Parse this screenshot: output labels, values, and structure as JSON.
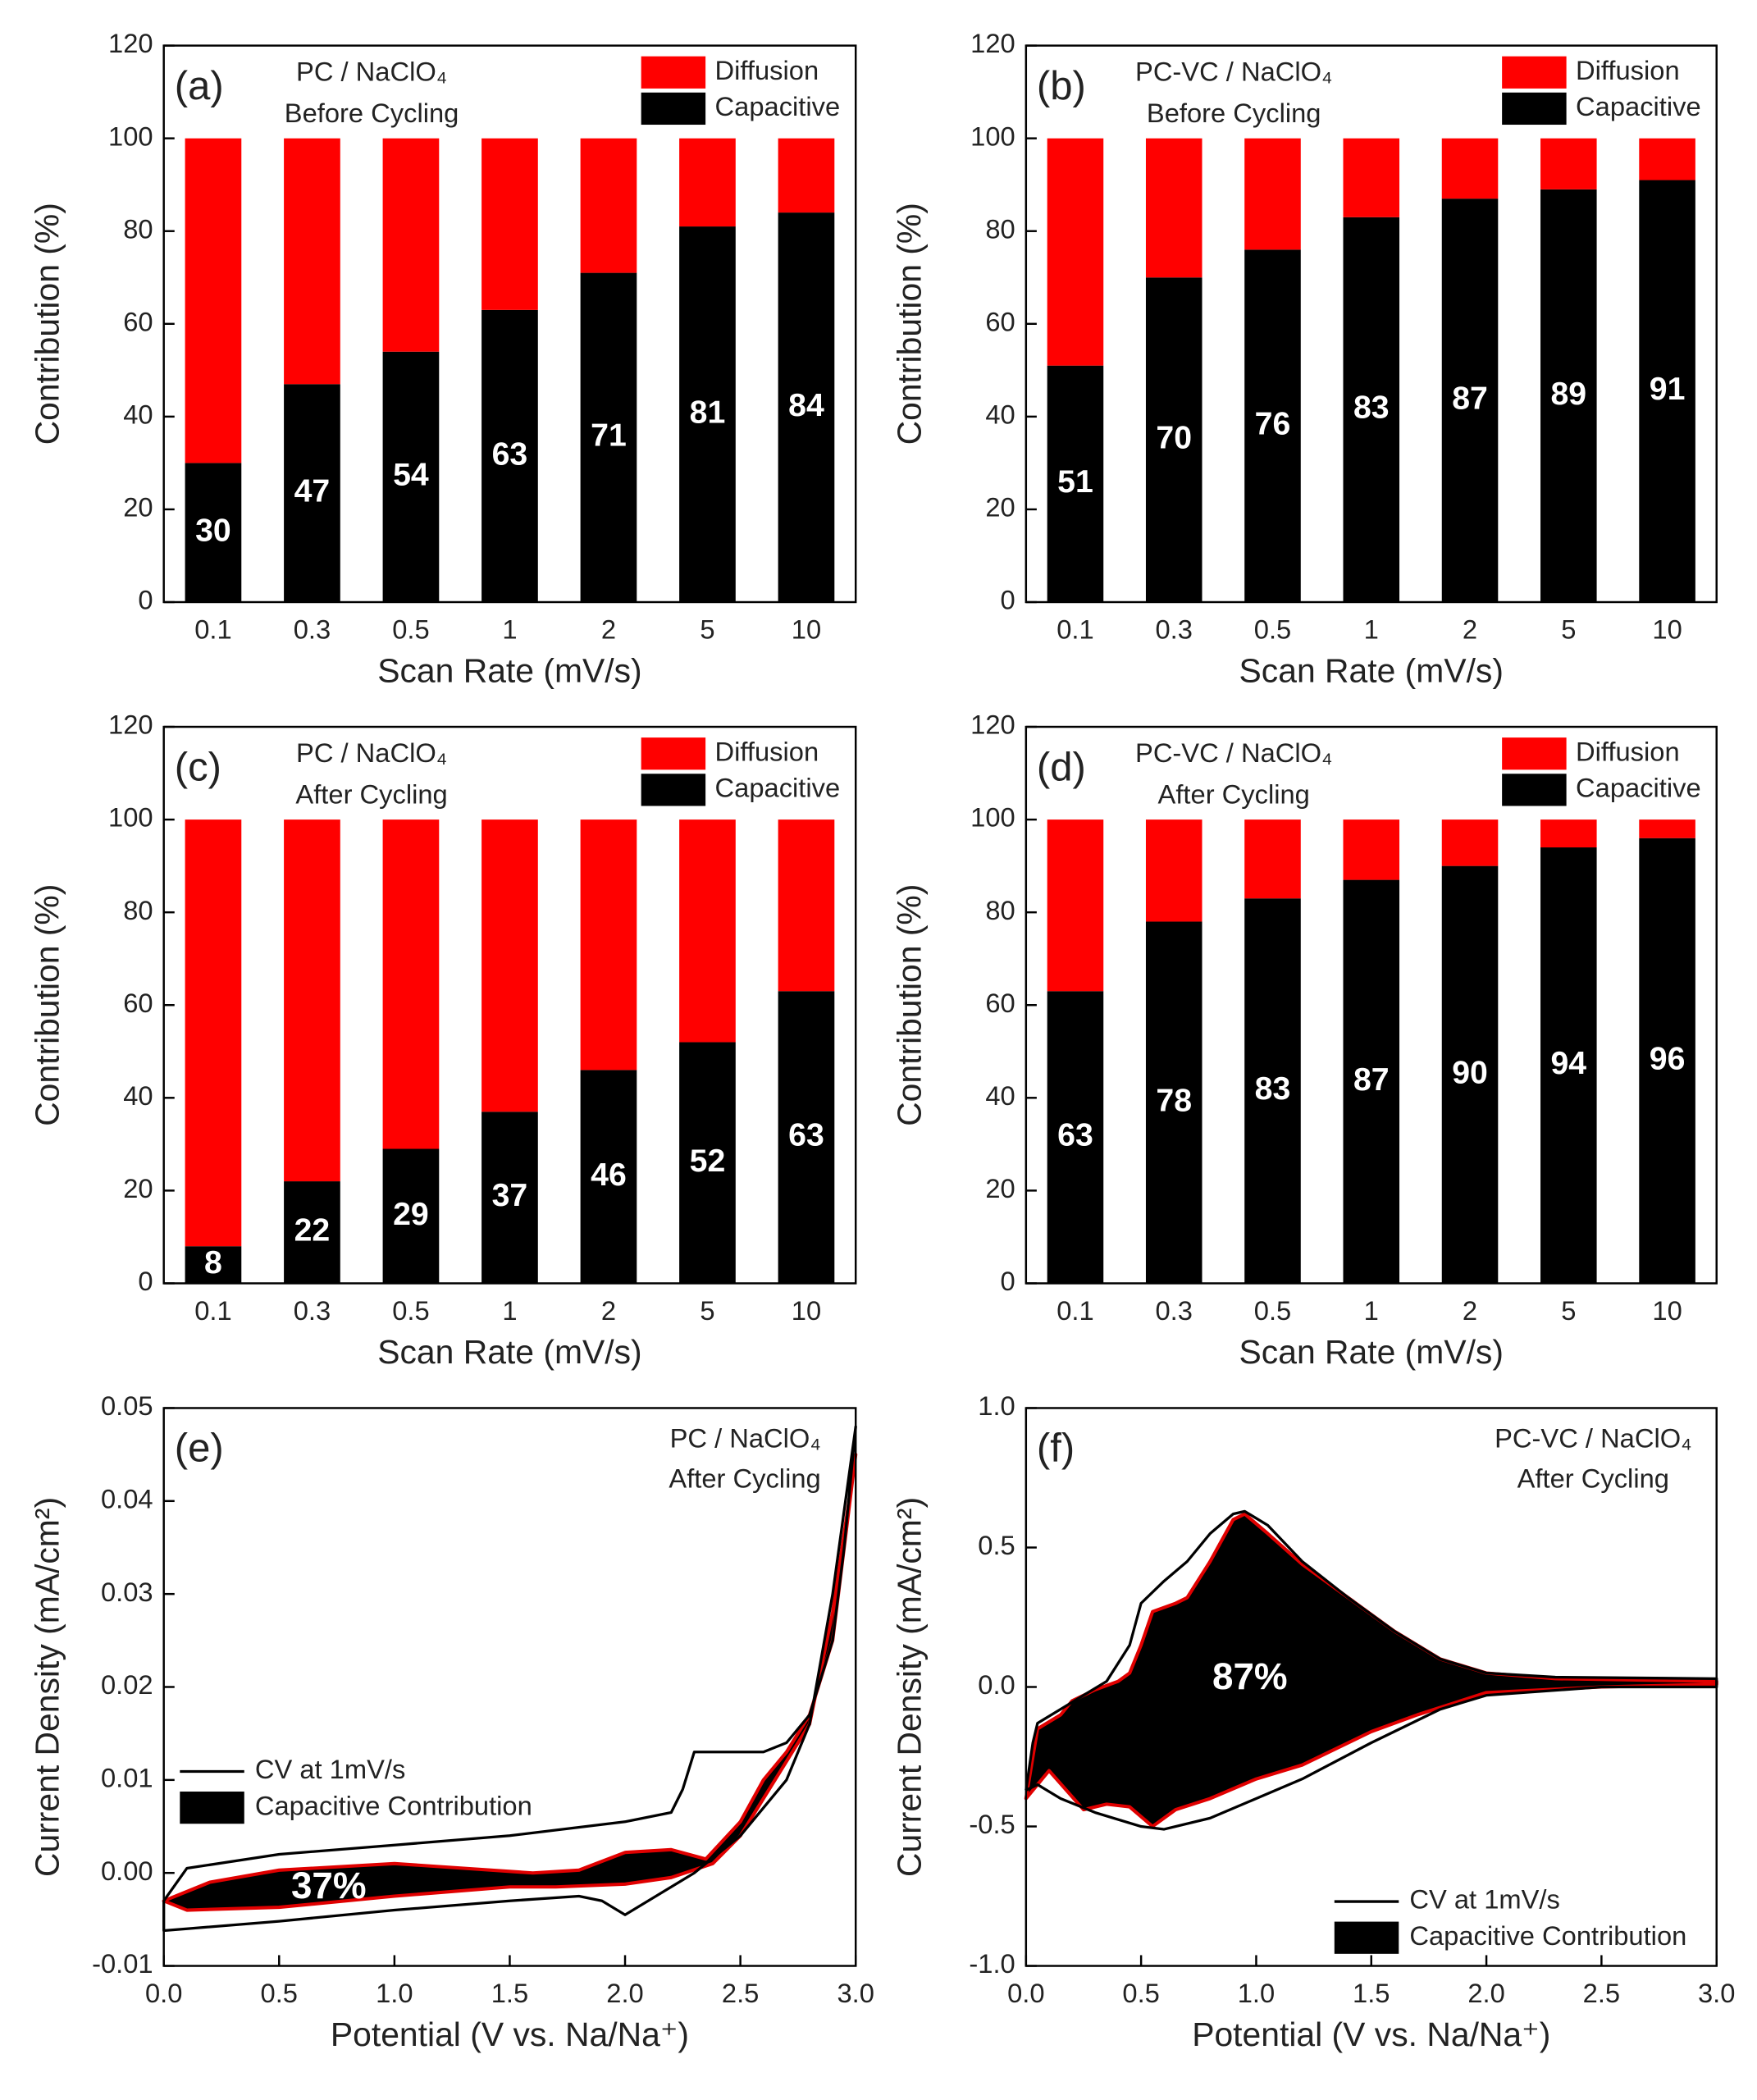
{
  "chart_data": [
    {
      "type": "bar",
      "panel": "(a)",
      "title": "PC / NaClO₄",
      "subtitle": "Before Cycling",
      "x_label": "Scan Rate (mV/s)",
      "y_label": "Contribution (%)",
      "categories": [
        "0.1",
        "0.3",
        "0.5",
        "1",
        "2",
        "5",
        "10"
      ],
      "series": [
        {
          "name": "Capacitive",
          "color": "#000000",
          "values": [
            30,
            47,
            54,
            63,
            71,
            81,
            84
          ]
        },
        {
          "name": "Diffusion",
          "color": "#ff0000",
          "values": [
            70,
            53,
            46,
            37,
            29,
            19,
            16
          ]
        }
      ],
      "ylim": [
        0,
        120
      ],
      "yticks": [
        0,
        20,
        40,
        60,
        80,
        100,
        120
      ],
      "stacked": true,
      "legend": "upper right"
    },
    {
      "type": "bar",
      "panel": "(b)",
      "title": "PC-VC / NaClO₄",
      "subtitle": "Before Cycling",
      "x_label": "Scan Rate (mV/s)",
      "y_label": "Contribution (%)",
      "categories": [
        "0.1",
        "0.3",
        "0.5",
        "1",
        "2",
        "5",
        "10"
      ],
      "series": [
        {
          "name": "Capacitive",
          "color": "#000000",
          "values": [
            51,
            70,
            76,
            83,
            87,
            89,
            91
          ]
        },
        {
          "name": "Diffusion",
          "color": "#ff0000",
          "values": [
            49,
            30,
            24,
            17,
            13,
            11,
            9
          ]
        }
      ],
      "ylim": [
        0,
        120
      ],
      "yticks": [
        0,
        20,
        40,
        60,
        80,
        100,
        120
      ],
      "stacked": true,
      "legend": "upper right"
    },
    {
      "type": "bar",
      "panel": "(c)",
      "title": "PC / NaClO₄",
      "subtitle": "After Cycling",
      "x_label": "Scan Rate (mV/s)",
      "y_label": "Contribution (%)",
      "categories": [
        "0.1",
        "0.3",
        "0.5",
        "1",
        "2",
        "5",
        "10"
      ],
      "series": [
        {
          "name": "Capacitive",
          "color": "#000000",
          "values": [
            8,
            22,
            29,
            37,
            46,
            52,
            63
          ]
        },
        {
          "name": "Diffusion",
          "color": "#ff0000",
          "values": [
            92,
            78,
            71,
            63,
            54,
            48,
            37
          ]
        }
      ],
      "ylim": [
        0,
        120
      ],
      "yticks": [
        0,
        20,
        40,
        60,
        80,
        100,
        120
      ],
      "stacked": true,
      "legend": "upper right"
    },
    {
      "type": "bar",
      "panel": "(d)",
      "title": "PC-VC / NaClO₄",
      "subtitle": "After Cycling",
      "x_label": "Scan Rate (mV/s)",
      "y_label": "Contribution (%)",
      "categories": [
        "0.1",
        "0.3",
        "0.5",
        "1",
        "2",
        "5",
        "10"
      ],
      "series": [
        {
          "name": "Capacitive",
          "color": "#000000",
          "values": [
            63,
            78,
            83,
            87,
            90,
            94,
            96
          ]
        },
        {
          "name": "Diffusion",
          "color": "#ff0000",
          "values": [
            37,
            22,
            17,
            13,
            10,
            6,
            4
          ]
        }
      ],
      "ylim": [
        0,
        120
      ],
      "yticks": [
        0,
        20,
        40,
        60,
        80,
        100,
        120
      ],
      "stacked": true,
      "legend": "upper right"
    },
    {
      "type": "line",
      "panel": "(e)",
      "title": "PC / NaClO₄",
      "subtitle": "After Cycling",
      "x_label": "Potential (V vs. Na/Na⁺)",
      "y_label": "Current Density (mA/cm²)",
      "annotation": "37%",
      "series": [
        {
          "name": "CV at 1mV/s",
          "color": "#000000",
          "x": [
            0.0,
            0.1,
            0.5,
            1.0,
            1.5,
            2.0,
            2.2,
            2.25,
            2.3,
            2.4,
            2.6,
            2.7,
            2.8,
            2.9,
            2.95,
            3.0,
            2.9,
            2.8,
            2.7,
            2.5,
            2.3,
            2.1,
            2.0,
            1.9,
            1.8,
            1.5,
            1.0,
            0.5,
            0.1,
            0.0,
            0.0
          ],
          "values": [
            -0.003,
            0.0005,
            0.002,
            0.003,
            0.004,
            0.0055,
            0.0065,
            0.009,
            0.013,
            0.013,
            0.013,
            0.014,
            0.017,
            0.025,
            0.035,
            0.048,
            0.03,
            0.016,
            0.01,
            0.004,
            0.0,
            -0.003,
            -0.0045,
            -0.003,
            -0.0025,
            -0.003,
            -0.004,
            -0.0052,
            -0.006,
            -0.0062,
            -0.003
          ]
        },
        {
          "name": "Capacitive Contribution",
          "color": "#e00000",
          "fill": "#000000",
          "x": [
            0.0,
            0.2,
            0.5,
            1.0,
            1.3,
            1.6,
            1.8,
            2.0,
            2.2,
            2.35,
            2.5,
            2.6,
            2.7,
            2.8,
            2.9,
            3.0,
            2.9,
            2.8,
            2.75,
            2.6,
            2.5,
            2.38,
            2.2,
            2.0,
            1.7,
            1.5,
            1.0,
            0.5,
            0.1,
            0.0
          ],
          "values": [
            -0.003,
            -0.001,
            0.0003,
            0.001,
            0.0005,
            0.0,
            0.0003,
            0.0022,
            0.0025,
            0.0015,
            0.0055,
            0.01,
            0.013,
            0.017,
            0.025,
            0.045,
            0.028,
            0.016,
            0.014,
            0.008,
            0.004,
            0.001,
            -0.0005,
            -0.0012,
            -0.0015,
            -0.0015,
            -0.0025,
            -0.0037,
            -0.004,
            -0.003
          ]
        }
      ],
      "xlim": [
        0,
        3
      ],
      "xticks": [
        {
          "value": 0,
          "label": "0.0"
        },
        0.5,
        {
          "value": 1,
          "label": "1.0"
        },
        1.5,
        {
          "value": 2,
          "label": "2.0"
        },
        2.5,
        {
          "value": 3,
          "label": "3.0"
        }
      ],
      "ylim": [
        -0.01,
        0.05
      ],
      "yticks": [
        -0.01,
        {
          "value": 0,
          "label": "0.00"
        },
        0.01,
        0.02,
        0.03,
        0.04,
        0.05
      ],
      "legend": "lower left"
    },
    {
      "type": "line",
      "panel": "(f)",
      "title": "PC-VC / NaClO₄",
      "subtitle": "After Cycling",
      "x_label": "Potential (V vs. Na/Na⁺)",
      "y_label": "Current Density (mA/cm²)",
      "annotation": "87%",
      "series": [
        {
          "name": "CV at 1mV/s",
          "color": "#000000",
          "x": [
            0.0,
            0.03,
            0.05,
            0.15,
            0.25,
            0.35,
            0.45,
            0.5,
            0.6,
            0.7,
            0.8,
            0.9,
            0.95,
            1.05,
            1.2,
            1.4,
            1.6,
            1.8,
            2.0,
            2.3,
            3.0,
            3.0,
            2.5,
            2.0,
            1.8,
            1.5,
            1.2,
            1.0,
            0.8,
            0.6,
            0.5,
            0.3,
            0.15,
            0.05,
            0.0
          ],
          "values": [
            -0.37,
            -0.2,
            -0.13,
            -0.08,
            -0.03,
            0.02,
            0.15,
            0.3,
            0.38,
            0.45,
            0.55,
            0.62,
            0.63,
            0.58,
            0.45,
            0.32,
            0.2,
            0.1,
            0.05,
            0.035,
            0.03,
            0.0,
            0.0,
            -0.03,
            -0.08,
            -0.2,
            -0.33,
            -0.4,
            -0.47,
            -0.51,
            -0.5,
            -0.45,
            -0.4,
            -0.35,
            -0.37
          ]
        },
        {
          "name": "Capacitive Contribution",
          "color": "#e00000",
          "fill": "#000000",
          "x": [
            0.0,
            0.05,
            0.15,
            0.2,
            0.3,
            0.4,
            0.45,
            0.5,
            0.55,
            0.65,
            0.7,
            0.8,
            0.9,
            0.95,
            1.05,
            1.2,
            1.4,
            1.6,
            1.8,
            2.0,
            2.3,
            3.0,
            3.0,
            2.5,
            2.0,
            1.7,
            1.5,
            1.2,
            1.0,
            0.8,
            0.65,
            0.55,
            0.45,
            0.35,
            0.25,
            0.1,
            0.0
          ],
          "values": [
            -0.4,
            -0.15,
            -0.1,
            -0.05,
            -0.01,
            0.02,
            0.05,
            0.15,
            0.27,
            0.3,
            0.32,
            0.45,
            0.6,
            0.62,
            0.55,
            0.44,
            0.32,
            0.2,
            0.1,
            0.05,
            0.03,
            0.02,
            0.01,
            0.0,
            -0.02,
            -0.1,
            -0.16,
            -0.28,
            -0.33,
            -0.4,
            -0.44,
            -0.5,
            -0.43,
            -0.42,
            -0.44,
            -0.3,
            -0.4
          ]
        }
      ],
      "xlim": [
        0,
        3
      ],
      "xticks": [
        {
          "value": 0,
          "label": "0.0"
        },
        0.5,
        {
          "value": 1,
          "label": "1.0"
        },
        1.5,
        {
          "value": 2,
          "label": "2.0"
        },
        2.5,
        {
          "value": 3,
          "label": "3.0"
        }
      ],
      "ylim": [
        -1,
        1
      ],
      "yticks": [
        {
          "value": -1,
          "label": "-1.0"
        },
        -0.5,
        {
          "value": 0,
          "label": "0.0"
        },
        0.5,
        {
          "value": 1,
          "label": "1.0"
        }
      ],
      "legend": "lower right"
    }
  ]
}
